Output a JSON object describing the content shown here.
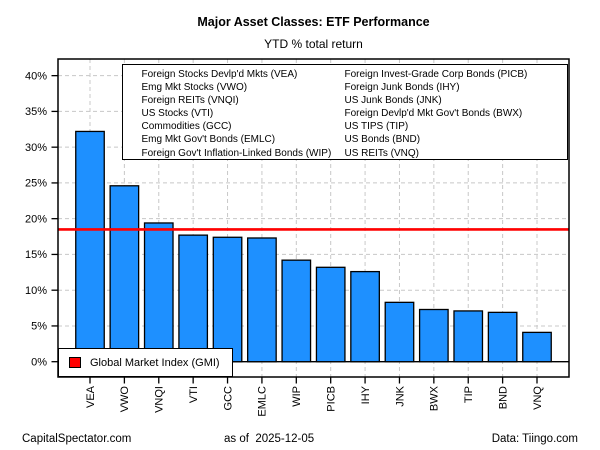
{
  "title": "Major Asset Classes: ETF Performance",
  "subtitle": "YTD % total return",
  "etf_legend": {
    "left_column": [
      "Foreign Stocks Devlp'd Mkts (VEA)",
      "Emg Mkt Stocks (VWO)",
      "Foreign REITs (VNQI)",
      "US Stocks (VTI)",
      "Commodities (GCC)",
      "Emg Mkt Gov't Bonds (EMLC)",
      "Foreign Gov't Inflation-Linked Bonds (WIP)"
    ],
    "right_column": [
      "Foreign Invest-Grade Corp Bonds (PICB)",
      "Foreign Junk Bonds (IHY)",
      "US Junk Bonds (JNK)",
      "Foreign Devlp'd Mkt Gov't Bonds (BWX)",
      "US TIPS (TIP)",
      "US Bonds (BND)",
      "US REITs (VNQ)"
    ]
  },
  "gmi_legend": {
    "label": "Global Market Index (GMI)",
    "swatch_color": "#ff0000"
  },
  "footer": {
    "left": "CapitalSpectator.com",
    "center": "as of  2025-12-05",
    "right": "Data: Tiingo.com"
  },
  "chart_data": {
    "type": "bar",
    "title": "Major Asset Classes: ETF Performance",
    "subtitle": "YTD % total return",
    "categories": [
      "VEA",
      "VWO",
      "VNQI",
      "VTI",
      "GCC",
      "EMLC",
      "WIP",
      "PICB",
      "IHY",
      "JNK",
      "BWX",
      "TIP",
      "BND",
      "VNQ"
    ],
    "values": [
      32.2,
      24.6,
      19.4,
      17.7,
      17.4,
      17.3,
      14.2,
      13.2,
      12.6,
      8.3,
      7.3,
      7.1,
      6.9,
      4.1
    ],
    "reference_line": {
      "label": "Global Market Index (GMI)",
      "value": 18.5,
      "color": "#ff0000"
    },
    "xlabel": "",
    "ylabel": "",
    "y_ticks": [
      0,
      5,
      10,
      15,
      20,
      25,
      30,
      35,
      40
    ],
    "y_tick_suffix": "%",
    "ylim": [
      -2.14,
      42.33
    ],
    "grid": "dashed, horizontal at each 5% tick and vertical at each bar center",
    "legend_position": "bottom-left (GMI), top-center (ETF names)",
    "bar_color": "#1e90ff",
    "bar_border_color": "#000000",
    "grid_color": "#c8c8c8"
  }
}
